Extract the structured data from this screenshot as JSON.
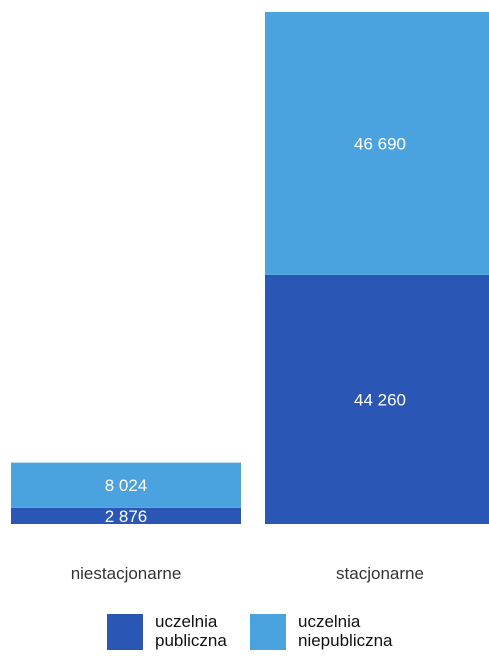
{
  "chart_data": {
    "type": "bar",
    "stacked": true,
    "categories": [
      "niestacjonarne",
      "stacjonarne"
    ],
    "series": [
      {
        "name": "uczelnia publiczna",
        "values": [
          2876,
          44260
        ],
        "color": "#2a57b5",
        "labels": [
          "2 876",
          "44 260"
        ]
      },
      {
        "name": "uczelnia niepubliczna",
        "values": [
          8024,
          46690
        ],
        "color": "#4aa3de",
        "labels": [
          "8 024",
          "46 690"
        ]
      }
    ],
    "ylim": [
      0,
      90950
    ],
    "legend_placement": "bottom",
    "grid": false
  },
  "legend": {
    "items": [
      {
        "label": "uczelnia\npubliczna",
        "color": "#2a57b5"
      },
      {
        "label": "uczelnia\nniepubliczna",
        "color": "#4aa3de"
      }
    ]
  }
}
